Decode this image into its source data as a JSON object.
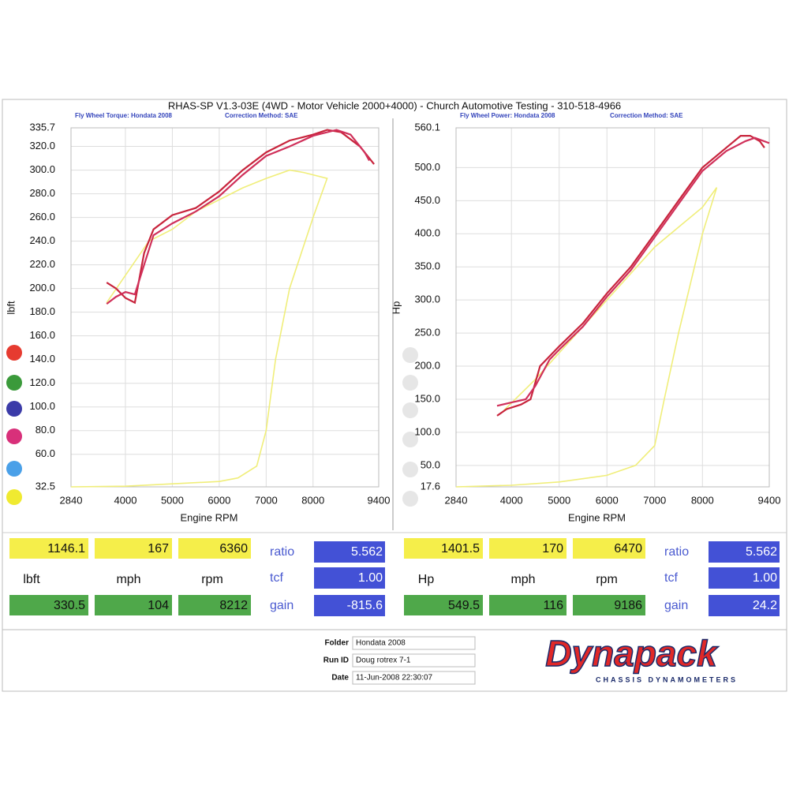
{
  "header": {
    "title": "RHAS-SP V1.3-03E  (4WD - Motor Vehicle 2000+4000) - Church Automotive Testing - 310-518-4966"
  },
  "chart_data": [
    {
      "type": "line",
      "subtitle": "Fly Wheel Torque: Hondata 2008",
      "correction": "Correction Method: SAE",
      "ylabel": "lbft",
      "xlabel": "Engine RPM",
      "xlim": [
        2840,
        9400
      ],
      "xticks": [
        2840,
        4000,
        5000,
        6000,
        7000,
        8000,
        9400
      ],
      "ylim": [
        32.5,
        335.7
      ],
      "yticks": [
        32.5,
        {
          "value": 60,
          "label": "60.0"
        },
        {
          "value": 80,
          "label": "80.0"
        },
        {
          "value": 100,
          "label": "100.0"
        },
        {
          "value": 120,
          "label": "120.0"
        },
        {
          "value": 140,
          "label": "140.0"
        },
        {
          "value": 160,
          "label": "160.0"
        },
        {
          "value": 180,
          "label": "180.0"
        },
        {
          "value": 200,
          "label": "200.0"
        },
        {
          "value": 220,
          "label": "220.0"
        },
        {
          "value": 240,
          "label": "240.0"
        },
        {
          "value": 260,
          "label": "260.0"
        },
        {
          "value": 280,
          "label": "280.0"
        },
        {
          "value": 300,
          "label": "300.0"
        },
        {
          "value": 320,
          "label": "320.0"
        },
        335.7
      ],
      "grid": true,
      "series": [
        {
          "color": "#f0ee7a",
          "x": [
            3600,
            4500,
            5000,
            5500,
            6000,
            6500,
            7000,
            7500,
            7800,
            8300,
            8000,
            7500,
            7200,
            7000,
            6800,
            6400,
            6000,
            5000,
            4000,
            2840
          ],
          "values": [
            188,
            240,
            250,
            265,
            275,
            285,
            293,
            300,
            298,
            293,
            260,
            200,
            140,
            80,
            50,
            40,
            37,
            35,
            33,
            32.5
          ]
        },
        {
          "color": "#c8243c",
          "x": [
            3600,
            3800,
            4000,
            4200,
            4400,
            4600,
            5000,
            5500,
            6000,
            6500,
            7000,
            7500,
            8000,
            8300,
            8600,
            9000,
            9300
          ],
          "values": [
            205,
            200,
            192,
            188,
            230,
            250,
            262,
            268,
            282,
            300,
            315,
            325,
            330,
            334,
            332,
            320,
            305
          ]
        },
        {
          "color": "#d0305a",
          "x": [
            3600,
            3800,
            4000,
            4200,
            4400,
            4600,
            5000,
            5500,
            6000,
            6500,
            7000,
            7500,
            8000,
            8500,
            8800,
            9100,
            9200
          ],
          "values": [
            187,
            193,
            197,
            195,
            220,
            245,
            255,
            265,
            278,
            296,
            312,
            320,
            329,
            334,
            330,
            315,
            308
          ]
        }
      ]
    },
    {
      "type": "line",
      "subtitle": "Fly Wheel Power: Hondata 2008",
      "correction": "Correction Method: SAE",
      "ylabel": "Hp",
      "xlabel": "Engine RPM",
      "xlim": [
        2840,
        9400
      ],
      "xticks": [
        2840,
        4000,
        5000,
        6000,
        7000,
        8000,
        9400
      ],
      "ylim": [
        17.6,
        560.1
      ],
      "yticks": [
        17.6,
        {
          "value": 50,
          "label": "50.0"
        },
        {
          "value": 100,
          "label": "100.0"
        },
        {
          "value": 150,
          "label": "150.0"
        },
        {
          "value": 200,
          "label": "200.0"
        },
        {
          "value": 250,
          "label": "250.0"
        },
        {
          "value": 300,
          "label": "300.0"
        },
        {
          "value": 350,
          "label": "350.0"
        },
        {
          "value": 400,
          "label": "400.0"
        },
        {
          "value": 450,
          "label": "450.0"
        },
        {
          "value": 500,
          "label": "500.0"
        },
        560.1
      ],
      "grid": true,
      "series": [
        {
          "color": "#f0ee7a",
          "x": [
            3800,
            4500,
            5000,
            5500,
            6000,
            6500,
            7000,
            7500,
            8000,
            8300,
            8000,
            7500,
            7200,
            7000,
            6600,
            6000,
            5000,
            4000,
            2840
          ],
          "values": [
            130,
            180,
            220,
            260,
            300,
            340,
            380,
            410,
            440,
            470,
            400,
            250,
            150,
            80,
            50,
            35,
            25,
            20,
            17.6
          ]
        },
        {
          "color": "#c8243c",
          "x": [
            3700,
            3900,
            4200,
            4400,
            4600,
            5000,
            5500,
            6000,
            6500,
            7000,
            7500,
            8000,
            8500,
            8800,
            9000,
            9200,
            9300
          ],
          "values": [
            125,
            135,
            142,
            150,
            200,
            230,
            265,
            310,
            350,
            400,
            450,
            500,
            530,
            548,
            548,
            540,
            530
          ]
        },
        {
          "color": "#d0305a",
          "x": [
            3700,
            4000,
            4300,
            4500,
            4800,
            5000,
            5500,
            6000,
            6500,
            7000,
            7500,
            8000,
            8500,
            8900,
            9100,
            9400
          ],
          "values": [
            140,
            145,
            150,
            170,
            210,
            225,
            260,
            305,
            345,
            395,
            445,
            495,
            525,
            540,
            545,
            537
          ]
        }
      ]
    }
  ],
  "readouts": [
    {
      "top": [
        "1146.1",
        "167",
        "6360"
      ],
      "units": [
        "lbft",
        "mph",
        "rpm"
      ],
      "bottom": [
        "330.5",
        "104",
        "8212"
      ],
      "labels": [
        "ratio",
        "tcf",
        "gain"
      ],
      "settings": [
        "5.562",
        "1.00",
        "-815.6"
      ]
    },
    {
      "top": [
        "1401.5",
        "170",
        "6470"
      ],
      "units": [
        "Hp",
        "mph",
        "rpm"
      ],
      "bottom": [
        "549.5",
        "116",
        "9186"
      ],
      "labels": [
        "ratio",
        "tcf",
        "gain"
      ],
      "settings": [
        "5.562",
        "1.00",
        "24.2"
      ]
    }
  ],
  "footer": {
    "fields": [
      {
        "label": "Folder",
        "value": "Hondata 2008"
      },
      {
        "label": "Run ID",
        "value": "Doug rotrex 7-1"
      },
      {
        "label": "Date",
        "value": "11-Jun-2008  22:30:07"
      }
    ],
    "logo": "Dynapack",
    "logo_tagline": "CHASSIS   DYNAMOMETERS"
  }
}
